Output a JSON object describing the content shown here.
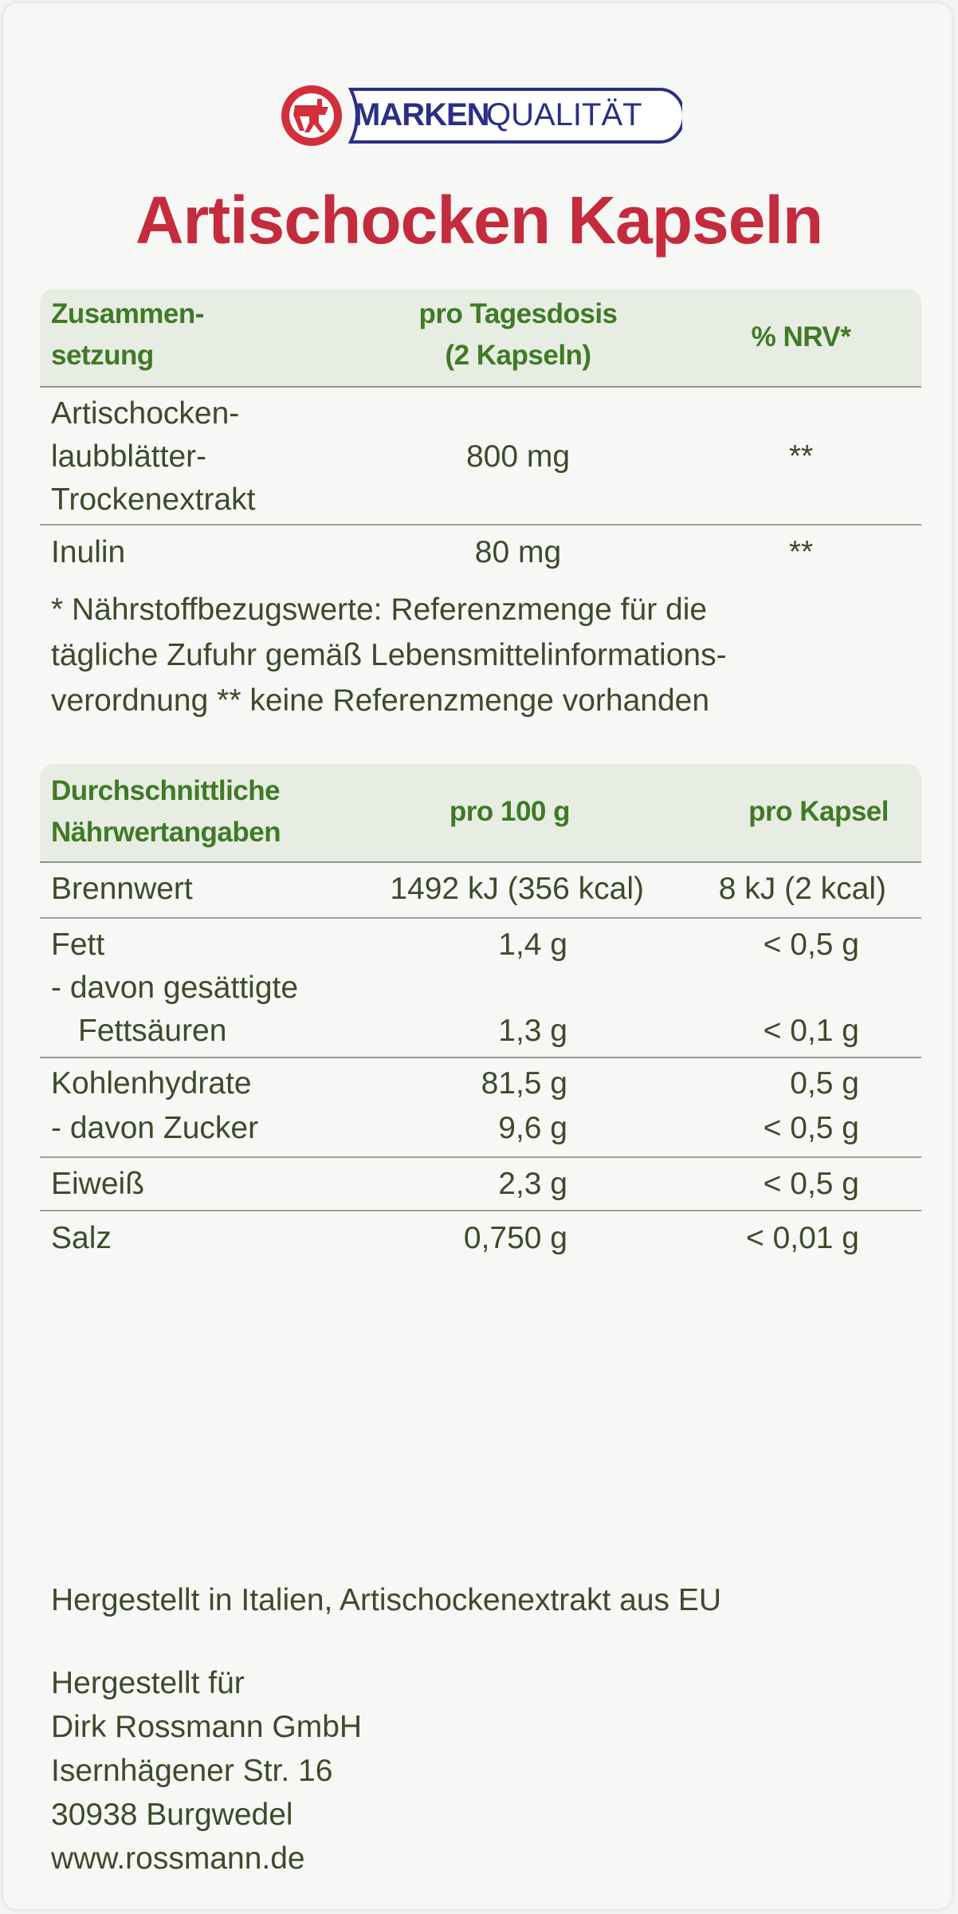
{
  "logo": {
    "brand_bold": "MARKEN",
    "brand_light": "QUALITÄT",
    "colors": {
      "red": "#d32f3a",
      "blue": "#2a2f86"
    }
  },
  "title": "Artischocken Kapseln",
  "composition_table": {
    "headers": [
      "Zusammen-\nsetzung",
      "pro Tagesdosis\n(2 Kapseln)",
      "% NRV*"
    ],
    "header_lines": {
      "col1": [
        "Zusammen-",
        "setzung"
      ],
      "col2": [
        "pro Tagesdosis",
        "(2 Kapseln)"
      ],
      "col3": "% NRV*"
    },
    "rows": [
      {
        "name_lines": [
          "Artischocken-",
          "laubblätter-",
          "Trockenextrakt"
        ],
        "amount": "800 mg",
        "nrv": "**"
      },
      {
        "name_lines": [
          "Inulin"
        ],
        "amount": "80 mg",
        "nrv": "**"
      }
    ],
    "footnote_lines": [
      "* Nährstoffbezugswerte: Referenzmenge für die",
      "tägliche Zufuhr gemäß Lebensmittelinformations-",
      "verordnung ** keine Referenzmenge vorhanden"
    ]
  },
  "nutrition_table": {
    "header_lines": {
      "col1": [
        "Durchschnittliche",
        "Nährwertangaben"
      ],
      "col2": "pro 100 g",
      "col3": "pro Kapsel"
    },
    "rows": [
      {
        "label": "Brennwert",
        "per100": "1492 kJ (356 kcal)",
        "per_capsule": "8 kJ (2 kcal)"
      },
      {
        "label": "Fett",
        "per100": "1,4 g",
        "per_capsule": "< 0,5 g"
      },
      {
        "label": "- davon gesättigte",
        "per100": "",
        "per_capsule": ""
      },
      {
        "label": "Fettsäuren",
        "per100": "1,3 g",
        "per_capsule": "< 0,1 g"
      },
      {
        "label": "Kohlenhydrate",
        "per100": "81,5 g",
        "per_capsule": "0,5 g"
      },
      {
        "label": "- davon Zucker",
        "per100": "9,6 g",
        "per_capsule": "< 0,5 g"
      },
      {
        "label": "Eiweiß",
        "per100": "2,3 g",
        "per_capsule": "< 0,5 g"
      },
      {
        "label": "Salz",
        "per100": "0,750 g",
        "per_capsule": "< 0,01 g"
      }
    ]
  },
  "origin": "Hergestellt in Italien, Artischockenextrakt aus EU",
  "manufacturer": [
    "Hergestellt für",
    "Dirk Rossmann GmbH",
    "Isernhägener Str. 16",
    "30938 Burgwedel",
    "www.rossmann.de"
  ]
}
